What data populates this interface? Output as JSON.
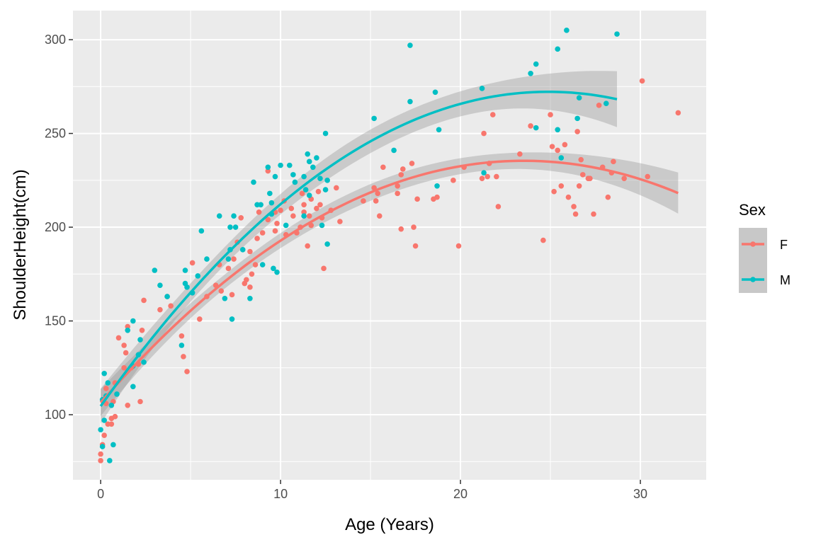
{
  "chart_data": {
    "type": "scatter",
    "title": "",
    "xlabel": "Age (Years)",
    "ylabel": "ShoulderHeight(cm)",
    "xlim": [
      -1.54,
      33.66
    ],
    "ylim": [
      65.3,
      315.5
    ],
    "x_ticks": [
      0,
      10,
      20,
      30
    ],
    "y_ticks": [
      100,
      150,
      200,
      250,
      300
    ],
    "grid": true,
    "smooth": "fitted curve with grey confidence band per series",
    "legend": {
      "title": "Sex",
      "placement": "right"
    },
    "series": [
      {
        "name": "F",
        "color": "#F8766D",
        "points": [
          [
            0,
            79
          ],
          [
            0,
            75.5
          ],
          [
            0.1,
            84
          ],
          [
            0.2,
            89
          ],
          [
            0.3,
            106
          ],
          [
            0.3,
            114
          ],
          [
            0.4,
            95
          ],
          [
            0.6,
            95
          ],
          [
            0.6,
            98
          ],
          [
            0.8,
            99
          ],
          [
            0.7,
            107
          ],
          [
            0.8,
            117
          ],
          [
            1,
            141
          ],
          [
            1.3,
            137
          ],
          [
            1.3,
            125
          ],
          [
            1.4,
            133
          ],
          [
            1.5,
            147
          ],
          [
            1.5,
            105
          ],
          [
            1.7,
            125
          ],
          [
            2.1,
            127
          ],
          [
            2.2,
            107
          ],
          [
            2.4,
            161
          ],
          [
            2.3,
            145
          ],
          [
            3.3,
            156
          ],
          [
            3.7,
            163
          ],
          [
            3.9,
            158
          ],
          [
            4.5,
            142
          ],
          [
            4.6,
            131
          ],
          [
            4.8,
            123
          ],
          [
            5.1,
            181
          ],
          [
            5.5,
            151
          ],
          [
            5.9,
            163
          ],
          [
            6.4,
            169
          ],
          [
            6.6,
            180
          ],
          [
            6.7,
            166
          ],
          [
            7.1,
            178
          ],
          [
            7.3,
            164
          ],
          [
            7.4,
            183
          ],
          [
            7.6,
            192
          ],
          [
            7.8,
            205
          ],
          [
            8,
            170
          ],
          [
            8.1,
            172
          ],
          [
            8.3,
            168
          ],
          [
            8.3,
            187
          ],
          [
            8.4,
            175
          ],
          [
            8.6,
            180
          ],
          [
            8.7,
            194
          ],
          [
            8.8,
            208
          ],
          [
            9,
            197
          ],
          [
            9.3,
            230
          ],
          [
            9.3,
            204
          ],
          [
            9.7,
            208
          ],
          [
            9.7,
            198
          ],
          [
            9.8,
            202
          ],
          [
            10,
            209
          ],
          [
            10.2,
            214
          ],
          [
            10.3,
            196
          ],
          [
            10.6,
            210
          ],
          [
            10.7,
            206
          ],
          [
            10.9,
            197
          ],
          [
            11.1,
            200
          ],
          [
            11.2,
            218
          ],
          [
            11.3,
            212
          ],
          [
            11.3,
            208
          ],
          [
            11.5,
            190
          ],
          [
            11.6,
            206
          ],
          [
            11.7,
            215
          ],
          [
            11.7,
            201
          ],
          [
            12,
            210
          ],
          [
            12.1,
            219
          ],
          [
            12.2,
            212
          ],
          [
            12.3,
            205
          ],
          [
            12.4,
            178
          ],
          [
            12.8,
            209
          ],
          [
            13.1,
            221
          ],
          [
            13.3,
            203
          ],
          [
            14.6,
            214
          ],
          [
            15.2,
            221
          ],
          [
            15.3,
            214
          ],
          [
            15.4,
            218
          ],
          [
            15.5,
            206
          ],
          [
            15.7,
            232
          ],
          [
            16.5,
            222
          ],
          [
            16.5,
            218
          ],
          [
            16.7,
            228
          ],
          [
            16.7,
            199
          ],
          [
            16.8,
            231
          ],
          [
            17.3,
            234
          ],
          [
            17.4,
            200
          ],
          [
            17.5,
            190
          ],
          [
            17.6,
            215
          ],
          [
            18.5,
            215
          ],
          [
            18.7,
            216
          ],
          [
            19.6,
            225
          ],
          [
            19.9,
            190
          ],
          [
            20.2,
            232
          ],
          [
            21.2,
            226
          ],
          [
            21.3,
            250
          ],
          [
            21.5,
            227
          ],
          [
            21.6,
            234
          ],
          [
            21.8,
            260
          ],
          [
            22,
            227
          ],
          [
            22.1,
            211
          ],
          [
            23.3,
            239
          ],
          [
            23.9,
            254
          ],
          [
            24.6,
            193
          ],
          [
            25,
            260
          ],
          [
            25.1,
            243
          ],
          [
            25.2,
            219
          ],
          [
            25.4,
            241
          ],
          [
            25.6,
            222
          ],
          [
            25.8,
            244
          ],
          [
            26,
            216
          ],
          [
            26.3,
            211
          ],
          [
            26.4,
            207
          ],
          [
            26.5,
            251
          ],
          [
            26.6,
            222
          ],
          [
            26.7,
            236
          ],
          [
            26.8,
            228
          ],
          [
            27.1,
            226
          ],
          [
            27.2,
            226
          ],
          [
            27.4,
            207
          ],
          [
            27.7,
            265
          ],
          [
            27.9,
            232
          ],
          [
            28.2,
            216
          ],
          [
            28.4,
            229
          ],
          [
            28.5,
            235
          ],
          [
            29.1,
            226
          ],
          [
            30.1,
            278
          ],
          [
            30.4,
            227
          ],
          [
            32.1,
            261
          ]
        ]
      },
      {
        "name": "M",
        "color": "#00BFC4",
        "points": [
          [
            0,
            92
          ],
          [
            0.1,
            108
          ],
          [
            0.2,
            97
          ],
          [
            0.1,
            83
          ],
          [
            0.2,
            122
          ],
          [
            0.3,
            110
          ],
          [
            0.4,
            117
          ],
          [
            0.5,
            75.5
          ],
          [
            0.6,
            105
          ],
          [
            0.7,
            84
          ],
          [
            0.9,
            111
          ],
          [
            1.5,
            145
          ],
          [
            1.8,
            150
          ],
          [
            1.8,
            126
          ],
          [
            1.8,
            115
          ],
          [
            2.1,
            132
          ],
          [
            2.2,
            140
          ],
          [
            2.4,
            128
          ],
          [
            3,
            177
          ],
          [
            3.3,
            169
          ],
          [
            3.7,
            163
          ],
          [
            4.5,
            137
          ],
          [
            4.7,
            177
          ],
          [
            4.7,
            170
          ],
          [
            4.8,
            168
          ],
          [
            5.1,
            165
          ],
          [
            5.4,
            174
          ],
          [
            5.6,
            198
          ],
          [
            5.9,
            183
          ],
          [
            6.6,
            206
          ],
          [
            6.9,
            162
          ],
          [
            7.1,
            183
          ],
          [
            7.2,
            188
          ],
          [
            7.2,
            200
          ],
          [
            7.3,
            151
          ],
          [
            7.4,
            206
          ],
          [
            7.5,
            200
          ],
          [
            7.9,
            188
          ],
          [
            8.3,
            162
          ],
          [
            8.5,
            224
          ],
          [
            8.7,
            212
          ],
          [
            8.9,
            212
          ],
          [
            9,
            180
          ],
          [
            9.3,
            232
          ],
          [
            9.4,
            218
          ],
          [
            9.5,
            213
          ],
          [
            9.5,
            207
          ],
          [
            9.7,
            227
          ],
          [
            9.6,
            178
          ],
          [
            9.8,
            176
          ],
          [
            10,
            233
          ],
          [
            10.3,
            201
          ],
          [
            10.5,
            233
          ],
          [
            10.7,
            228
          ],
          [
            10.8,
            224
          ],
          [
            11.3,
            227
          ],
          [
            11.3,
            206
          ],
          [
            11.4,
            220
          ],
          [
            11.5,
            239
          ],
          [
            11.6,
            235
          ],
          [
            11.6,
            217
          ],
          [
            11.8,
            232
          ],
          [
            12,
            237
          ],
          [
            12.2,
            226
          ],
          [
            12.3,
            201
          ],
          [
            12.5,
            250
          ],
          [
            12.5,
            220
          ],
          [
            12.6,
            191
          ],
          [
            12.6,
            225
          ],
          [
            15.2,
            258
          ],
          [
            16.3,
            241
          ],
          [
            17.2,
            267
          ],
          [
            17.2,
            297
          ],
          [
            18.6,
            272
          ],
          [
            18.7,
            222
          ],
          [
            18.8,
            252
          ],
          [
            21.2,
            274
          ],
          [
            21.3,
            229
          ],
          [
            23.9,
            282
          ],
          [
            24.2,
            287
          ],
          [
            24.2,
            253
          ],
          [
            25.4,
            295
          ],
          [
            25.4,
            252
          ],
          [
            25.6,
            237
          ],
          [
            25.9,
            305
          ],
          [
            26.5,
            258
          ],
          [
            26.6,
            269
          ],
          [
            28.1,
            266
          ],
          [
            28.7,
            303
          ]
        ]
      }
    ]
  }
}
